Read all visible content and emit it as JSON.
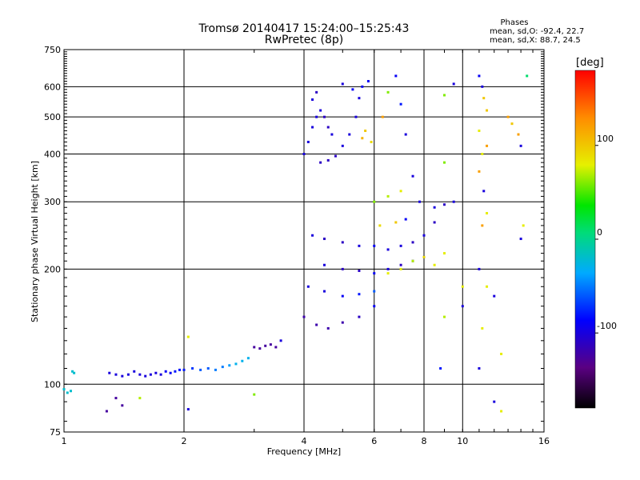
{
  "chart_data": {
    "type": "scatter",
    "title": "Tromsø 20140417 15:24:00–15:25:43",
    "subtitle": "RwPretec (8p)",
    "xlabel": "Frequency [MHz]",
    "ylabel": "Stationary phase Virtual Height [km]",
    "x_scale": "log",
    "y_scale": "log",
    "xlim": [
      1,
      16
    ],
    "ylim": [
      75,
      750
    ],
    "x_ticks": [
      1,
      2,
      4,
      6,
      8,
      10,
      16
    ],
    "y_ticks": [
      75,
      100,
      200,
      300,
      400,
      500,
      600,
      750
    ],
    "x_gridlines": [
      2,
      4,
      6,
      8,
      10
    ],
    "y_gridlines": [
      100,
      200,
      300,
      400,
      500,
      600
    ],
    "grid": true,
    "stats": {
      "heading": "Phases",
      "line1": "mean, sd,O: -92.4, 22.7",
      "line2": "mean, sd,X: 88.7, 24.5"
    },
    "colorbar": {
      "label": "[deg]",
      "range": [
        -180,
        180
      ],
      "ticks": [
        100,
        0,
        -100
      ],
      "tick_labels": [
        "100",
        "0",
        "-100"
      ],
      "colormap": "rainbow (black-violet-blue-cyan-green-yellow-orange-red)"
    },
    "series": [
      {
        "values": [
          [
            1.0,
            97,
            -20
          ],
          [
            1.02,
            95,
            -20
          ],
          [
            1.04,
            96,
            -20
          ],
          [
            1.05,
            108,
            -20
          ],
          [
            1.06,
            107,
            -20
          ],
          [
            1.3,
            107,
            -100
          ],
          [
            1.35,
            106,
            -100
          ],
          [
            1.4,
            105,
            -100
          ],
          [
            1.45,
            106,
            -100
          ],
          [
            1.5,
            108,
            -100
          ],
          [
            1.55,
            106,
            -100
          ],
          [
            1.6,
            105,
            -100
          ],
          [
            1.65,
            106,
            -100
          ],
          [
            1.7,
            107,
            -100
          ],
          [
            1.75,
            106,
            -100
          ],
          [
            1.8,
            108,
            -90
          ],
          [
            1.85,
            107,
            -90
          ],
          [
            1.9,
            108,
            -80
          ],
          [
            1.95,
            109,
            -80
          ],
          [
            2.0,
            109,
            -80
          ],
          [
            2.1,
            110,
            -70
          ],
          [
            2.2,
            109,
            -60
          ],
          [
            2.3,
            110,
            -60
          ],
          [
            2.4,
            109,
            -50
          ],
          [
            2.5,
            111,
            -50
          ],
          [
            2.6,
            112,
            -40
          ],
          [
            2.7,
            113,
            -30
          ],
          [
            2.8,
            115,
            -30
          ],
          [
            2.9,
            117,
            -30
          ],
          [
            3.0,
            125,
            -125
          ],
          [
            3.1,
            124,
            -125
          ],
          [
            3.2,
            126,
            -125
          ],
          [
            3.3,
            127,
            -125
          ],
          [
            3.4,
            125,
            -125
          ],
          [
            3.5,
            130,
            -100
          ],
          [
            1.35,
            92,
            -125
          ],
          [
            1.4,
            88,
            -125
          ],
          [
            1.28,
            85,
            -125
          ],
          [
            2.05,
            86,
            -100
          ],
          [
            3.0,
            94,
            60
          ],
          [
            2.05,
            133,
            80
          ],
          [
            1.55,
            92,
            70
          ],
          [
            4.0,
            150,
            -120
          ],
          [
            4.3,
            143,
            -120
          ],
          [
            4.6,
            140,
            -120
          ],
          [
            5.0,
            145,
            -120
          ],
          [
            5.5,
            150,
            -110
          ],
          [
            6.0,
            160,
            -90
          ],
          [
            4.1,
            180,
            -100
          ],
          [
            4.5,
            175,
            -100
          ],
          [
            5.0,
            170,
            -90
          ],
          [
            5.5,
            172,
            -80
          ],
          [
            6.0,
            175,
            -60
          ],
          [
            4.5,
            205,
            -100
          ],
          [
            5.0,
            200,
            -110
          ],
          [
            5.5,
            198,
            -110
          ],
          [
            6.0,
            195,
            -90
          ],
          [
            6.5,
            200,
            -100
          ],
          [
            7.0,
            205,
            -110
          ],
          [
            7.5,
            210,
            -100
          ],
          [
            8.0,
            215,
            -100
          ],
          [
            6.5,
            195,
            80
          ],
          [
            7.0,
            200,
            80
          ],
          [
            7.5,
            210,
            70
          ],
          [
            8.0,
            215,
            90
          ],
          [
            8.5,
            205,
            80
          ],
          [
            9.0,
            220,
            80
          ],
          [
            4.2,
            245,
            -100
          ],
          [
            4.5,
            240,
            -110
          ],
          [
            5.0,
            235,
            -110
          ],
          [
            5.5,
            230,
            -100
          ],
          [
            6.0,
            230,
            -90
          ],
          [
            6.5,
            225,
            -100
          ],
          [
            7.0,
            230,
            -100
          ],
          [
            7.5,
            235,
            -110
          ],
          [
            8.0,
            245,
            -100
          ],
          [
            8.5,
            265,
            -110
          ],
          [
            9.0,
            295,
            -110
          ],
          [
            4.0,
            400,
            -100
          ],
          [
            4.1,
            430,
            -100
          ],
          [
            4.2,
            470,
            -100
          ],
          [
            4.3,
            500,
            -100
          ],
          [
            4.4,
            520,
            -100
          ],
          [
            4.5,
            500,
            -110
          ],
          [
            4.6,
            470,
            -110
          ],
          [
            4.7,
            450,
            -100
          ],
          [
            4.4,
            380,
            -110
          ],
          [
            4.6,
            385,
            -110
          ],
          [
            4.8,
            395,
            -110
          ],
          [
            5.0,
            420,
            -100
          ],
          [
            5.2,
            450,
            -100
          ],
          [
            5.4,
            500,
            -100
          ],
          [
            5.5,
            560,
            -100
          ],
          [
            5.6,
            600,
            -90
          ],
          [
            5.8,
            620,
            -90
          ],
          [
            4.2,
            555,
            -100
          ],
          [
            4.3,
            580,
            -110
          ],
          [
            5.0,
            610,
            -100
          ],
          [
            5.3,
            590,
            -90
          ],
          [
            5.7,
            460,
            100
          ],
          [
            5.6,
            440,
            110
          ],
          [
            5.9,
            430,
            90
          ],
          [
            6.3,
            500,
            120
          ],
          [
            6.5,
            580,
            60
          ],
          [
            6.8,
            640,
            -90
          ],
          [
            7.0,
            540,
            -80
          ],
          [
            7.2,
            450,
            -100
          ],
          [
            7.5,
            350,
            -100
          ],
          [
            7.8,
            300,
            -100
          ],
          [
            6.0,
            300,
            60
          ],
          [
            6.5,
            310,
            70
          ],
          [
            7.0,
            320,
            80
          ],
          [
            6.2,
            260,
            90
          ],
          [
            6.8,
            265,
            100
          ],
          [
            7.2,
            270,
            -90
          ],
          [
            8.5,
            290,
            -100
          ],
          [
            9.5,
            610,
            -100
          ],
          [
            9.0,
            570,
            60
          ],
          [
            11.0,
            640,
            -90
          ],
          [
            11.2,
            600,
            -100
          ],
          [
            11.3,
            560,
            100
          ],
          [
            11.5,
            520,
            100
          ],
          [
            11.0,
            460,
            80
          ],
          [
            11.5,
            420,
            120
          ],
          [
            11.2,
            400,
            80
          ],
          [
            11.0,
            360,
            120
          ],
          [
            11.3,
            320,
            -100
          ],
          [
            11.5,
            280,
            80
          ],
          [
            11.2,
            260,
            120
          ],
          [
            11.0,
            200,
            -100
          ],
          [
            11.5,
            180,
            80
          ],
          [
            12.0,
            170,
            -100
          ],
          [
            11.2,
            140,
            80
          ],
          [
            11.0,
            110,
            -100
          ],
          [
            12.5,
            120,
            80
          ],
          [
            12.0,
            90,
            -100
          ],
          [
            12.5,
            85,
            80
          ],
          [
            13.0,
            500,
            120
          ],
          [
            13.3,
            480,
            100
          ],
          [
            13.8,
            450,
            120
          ],
          [
            14.0,
            420,
            -100
          ],
          [
            14.2,
            260,
            80
          ],
          [
            14.0,
            240,
            -100
          ],
          [
            14.5,
            640,
            10
          ],
          [
            9.5,
            300,
            -100
          ],
          [
            10.0,
            180,
            80
          ],
          [
            10.0,
            160,
            -100
          ],
          [
            9.0,
            380,
            60
          ],
          [
            9.0,
            150,
            70
          ],
          [
            8.8,
            110,
            -80
          ]
        ]
      }
    ]
  }
}
